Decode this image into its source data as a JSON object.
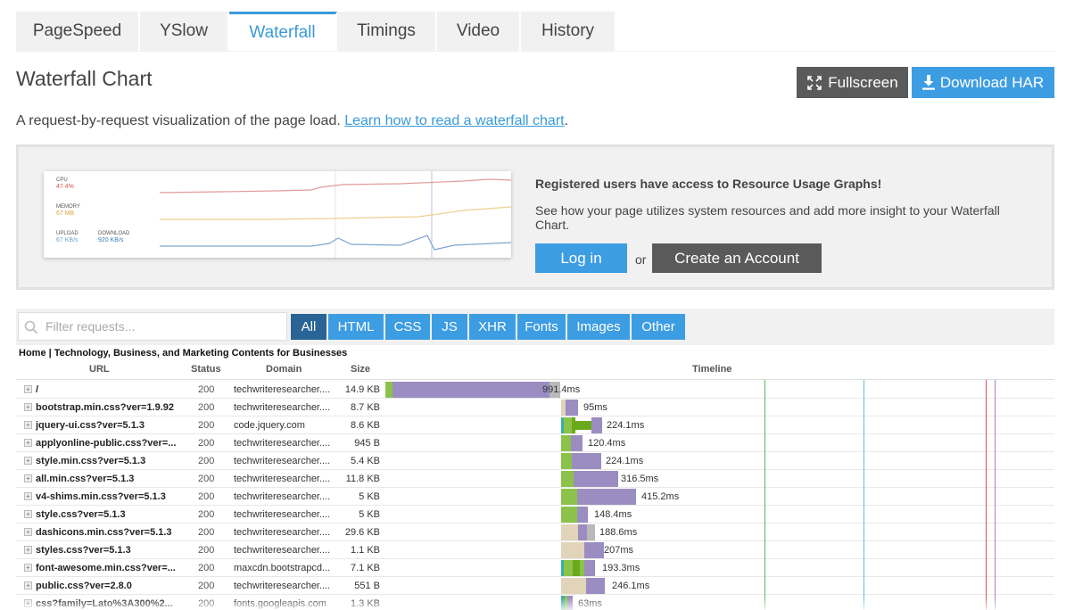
{
  "tabs": [
    {
      "label": "PageSpeed",
      "active": false
    },
    {
      "label": "YSlow",
      "active": false
    },
    {
      "label": "Waterfall",
      "active": true
    },
    {
      "label": "Timings",
      "active": false
    },
    {
      "label": "Video",
      "active": false
    },
    {
      "label": "History",
      "active": false
    }
  ],
  "header": {
    "title": "Waterfall Chart",
    "fullscreen_label": "Fullscreen",
    "download_label": "Download HAR",
    "intro_text": "A request-by-request visualization of the page load. ",
    "intro_link": "Learn how to read a waterfall chart",
    "intro_end": "."
  },
  "promo": {
    "graph": {
      "cpu_label": "CPU",
      "cpu_value": "47.4%",
      "memory_label": "MEMORY",
      "memory_value": "67 MB",
      "upload_label": "UPLOAD",
      "upload_value": "67 KB/s",
      "download_label": "DOWNLOAD",
      "download_value": "920 KB/s"
    },
    "heading": "Registered users have access to Resource Usage Graphs!",
    "body": "See how your page utilizes system resources and add more insight to your Waterfall Chart.",
    "login_label": "Log in",
    "or_text": "or",
    "create_label": "Create an Account"
  },
  "filter": {
    "placeholder": "Filter requests...",
    "buttons": [
      {
        "label": "All",
        "active": true
      },
      {
        "label": "HTML",
        "active": false
      },
      {
        "label": "CSS",
        "active": false
      },
      {
        "label": "JS",
        "active": false
      },
      {
        "label": "XHR",
        "active": false
      },
      {
        "label": "Fonts",
        "active": false
      },
      {
        "label": "Images",
        "active": false
      },
      {
        "label": "Other",
        "active": false
      }
    ]
  },
  "waterfall": {
    "page_title": "Home | Technology, Business, and Marketing Contents for Businesses",
    "columns": {
      "url": "URL",
      "status": "Status",
      "domain": "Domain",
      "size": "Size",
      "timeline": "Timeline"
    },
    "rows": [
      {
        "url": "/",
        "status": "200",
        "domain": "techwriteresearcher....",
        "size": "14.9 KB",
        "time": "991.4ms"
      },
      {
        "url": "bootstrap.min.css?ver=1.9.92",
        "status": "200",
        "domain": "techwriteresearcher....",
        "size": "8.7 KB",
        "time": "95ms"
      },
      {
        "url": "jquery-ui.css?ver=5.1.3",
        "status": "200",
        "domain": "code.jquery.com",
        "size": "8.6 KB",
        "time": "224.1ms"
      },
      {
        "url": "applyonline-public.css?ver=...",
        "status": "200",
        "domain": "techwriteresearcher....",
        "size": "945 B",
        "time": "120.4ms"
      },
      {
        "url": "style.min.css?ver=5.1.3",
        "status": "200",
        "domain": "techwriteresearcher....",
        "size": "5.4 KB",
        "time": "224.1ms"
      },
      {
        "url": "all.min.css?ver=5.1.3",
        "status": "200",
        "domain": "techwriteresearcher....",
        "size": "11.8 KB",
        "time": "316.5ms"
      },
      {
        "url": "v4-shims.min.css?ver=5.1.3",
        "status": "200",
        "domain": "techwriteresearcher....",
        "size": "5 KB",
        "time": "415.2ms"
      },
      {
        "url": "style.css?ver=5.1.3",
        "status": "200",
        "domain": "techwriteresearcher....",
        "size": "5 KB",
        "time": "148.4ms"
      },
      {
        "url": "dashicons.min.css?ver=5.1.3",
        "status": "200",
        "domain": "techwriteresearcher....",
        "size": "29.6 KB",
        "time": "188.6ms"
      },
      {
        "url": "styles.css?ver=5.1.3",
        "status": "200",
        "domain": "techwriteresearcher....",
        "size": "1.1 KB",
        "time": "207ms"
      },
      {
        "url": "font-awesome.min.css?ver=...",
        "status": "200",
        "domain": "maxcdn.bootstrapcd...",
        "size": "7.1 KB",
        "time": "193.3ms"
      },
      {
        "url": "public.css?ver=2.8.0",
        "status": "200",
        "domain": "techwriteresearcher....",
        "size": "551 B",
        "time": "246.1ms"
      },
      {
        "url": "css?family=Lato%3A300%2...",
        "status": "200",
        "domain": "fonts.googleapis.com",
        "size": "1.3 KB",
        "time": "63ms"
      }
    ]
  },
  "colors": {
    "accent": "#3d9de3",
    "dark_button": "#5a5a5a",
    "blocking": "#e2d4b8",
    "dns": "#3cb0a0",
    "connect": "#8bc34a",
    "ssl": "#6aa91a",
    "wait": "#9b8dc1",
    "receive": "#b9b9b9"
  }
}
